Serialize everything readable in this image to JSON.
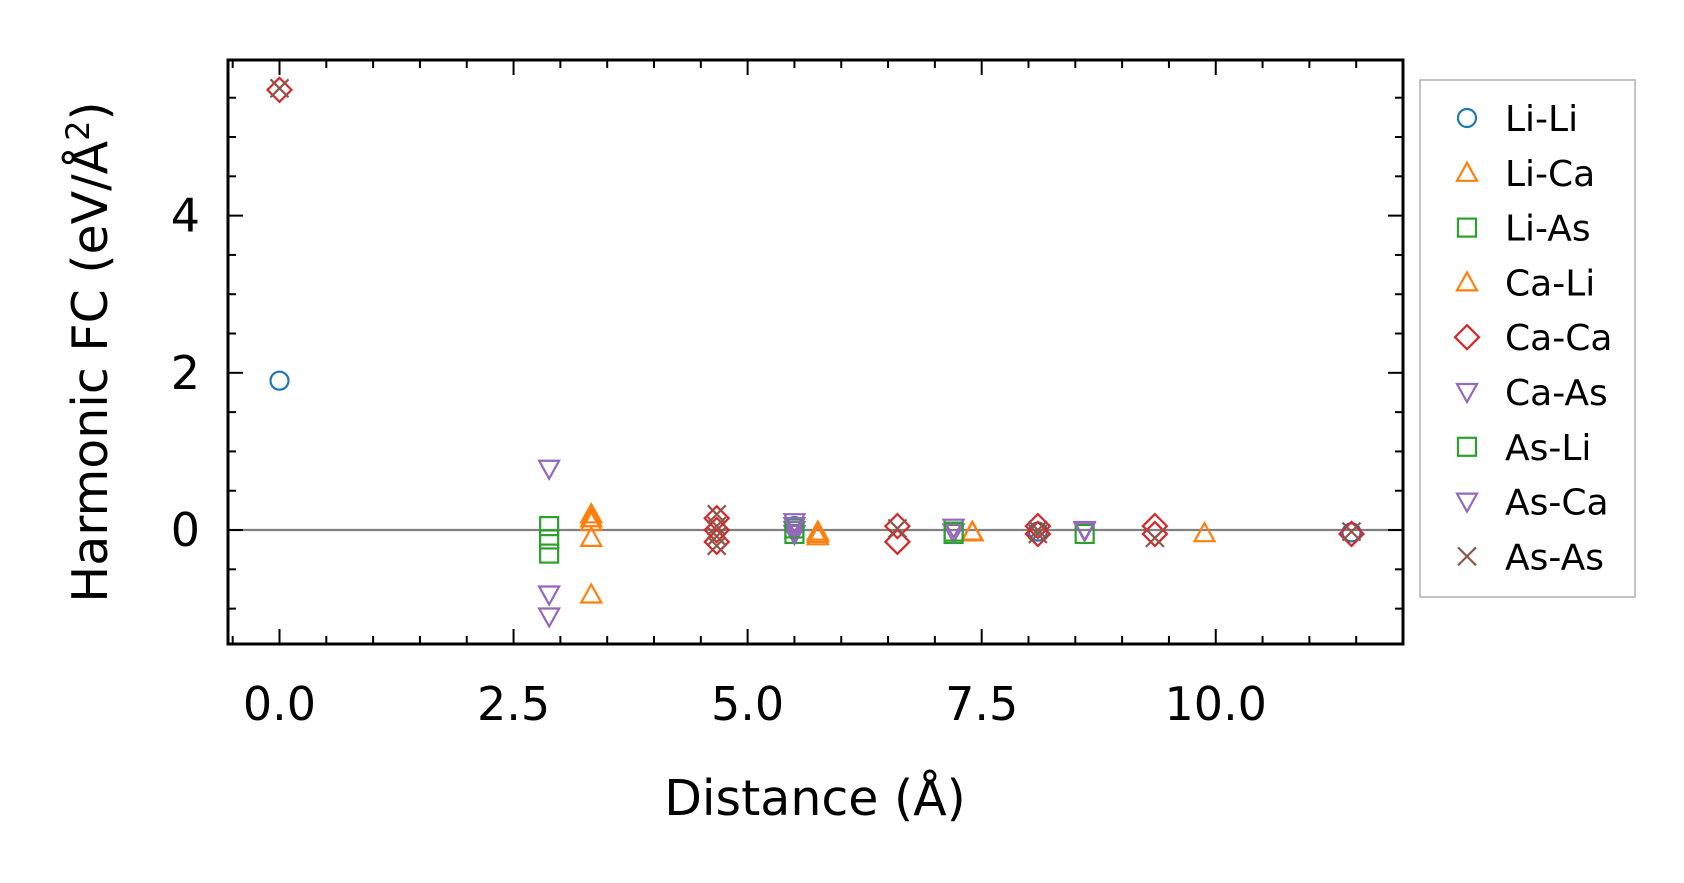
{
  "chart_data": {
    "type": "scatter",
    "xlabel": "Distance (Å)",
    "ylabel": "Harmonic FC (eV/Å²)",
    "ylabel_main": "Harmonic FC (eV/Å",
    "ylabel_sup": "2",
    "ylabel_end": ")",
    "xlim": [
      -0.55,
      12.0
    ],
    "ylim": [
      -1.45,
      5.98
    ],
    "x_ticks": [
      0.0,
      2.5,
      5.0,
      7.5,
      10.0
    ],
    "x_tick_labels": [
      "0.0",
      "2.5",
      "5.0",
      "7.5",
      "10.0"
    ],
    "y_ticks": [
      0,
      2,
      4
    ],
    "y_tick_labels": [
      "0",
      "2",
      "4"
    ],
    "x_minor_step": 0.5,
    "y_minor_step": 0.5,
    "zero_line": true,
    "legend_position": "outside-right",
    "series": [
      {
        "name": "Li-Li",
        "marker": "circle",
        "color": "#1f77b4",
        "points": [
          [
            0.0,
            1.9
          ],
          [
            5.5,
            0.05
          ],
          [
            8.1,
            -0.02
          ],
          [
            11.45,
            -0.03
          ]
        ]
      },
      {
        "name": "Li-Ca",
        "marker": "triangle-up",
        "color": "#ff7f0e",
        "points": [
          [
            3.33,
            0.2
          ],
          [
            3.33,
            0.1
          ],
          [
            3.33,
            -0.1
          ],
          [
            3.33,
            -0.82
          ],
          [
            5.75,
            -0.02
          ],
          [
            5.75,
            -0.08
          ],
          [
            7.4,
            -0.02
          ],
          [
            9.88,
            -0.04
          ]
        ]
      },
      {
        "name": "Li-As",
        "marker": "square",
        "color": "#2ca02c",
        "points": [
          [
            2.88,
            0.05
          ],
          [
            2.88,
            -0.12
          ],
          [
            2.88,
            -0.3
          ],
          [
            5.5,
            -0.05
          ],
          [
            7.2,
            -0.05
          ],
          [
            8.6,
            -0.05
          ]
        ]
      },
      {
        "name": "Ca-Li",
        "marker": "triangle-up",
        "color": "#ff7f0e",
        "points": [
          [
            3.33,
            0.15
          ],
          [
            5.75,
            -0.05
          ],
          [
            7.4,
            -0.03
          ]
        ]
      },
      {
        "name": "Ca-Ca",
        "marker": "diamond",
        "color": "#d62728",
        "points": [
          [
            0.0,
            5.6
          ],
          [
            4.67,
            0.15
          ],
          [
            4.67,
            0.0
          ],
          [
            4.67,
            -0.15
          ],
          [
            6.6,
            0.05
          ],
          [
            6.6,
            -0.15
          ],
          [
            8.1,
            0.05
          ],
          [
            8.1,
            -0.05
          ],
          [
            9.35,
            0.05
          ],
          [
            9.35,
            -0.05
          ],
          [
            11.45,
            -0.05
          ]
        ]
      },
      {
        "name": "Ca-As",
        "marker": "triangle-down",
        "color": "#9467bd",
        "points": [
          [
            2.88,
            0.78
          ],
          [
            2.88,
            -0.82
          ],
          [
            2.88,
            -1.1
          ],
          [
            5.5,
            0.1
          ],
          [
            5.5,
            0.0
          ],
          [
            5.5,
            -0.05
          ],
          [
            7.2,
            0.03
          ],
          [
            7.2,
            -0.03
          ],
          [
            8.6,
            -0.01
          ]
        ]
      },
      {
        "name": "As-Li",
        "marker": "square",
        "color": "#2ca02c",
        "points": [
          [
            5.5,
            0.02
          ],
          [
            7.2,
            -0.02
          ]
        ]
      },
      {
        "name": "As-Ca",
        "marker": "triangle-down",
        "color": "#9467bd",
        "points": [
          [
            5.5,
            0.05
          ],
          [
            8.6,
            0.0
          ]
        ]
      },
      {
        "name": "As-As",
        "marker": "x",
        "color": "#8c564b",
        "points": [
          [
            0.0,
            5.62
          ],
          [
            4.67,
            0.2
          ],
          [
            4.67,
            0.05
          ],
          [
            4.67,
            -0.08
          ],
          [
            4.67,
            -0.2
          ],
          [
            6.6,
            0.02
          ],
          [
            8.1,
            0.0
          ],
          [
            8.1,
            -0.05
          ],
          [
            9.35,
            -0.1
          ],
          [
            11.45,
            -0.02
          ]
        ]
      }
    ]
  }
}
